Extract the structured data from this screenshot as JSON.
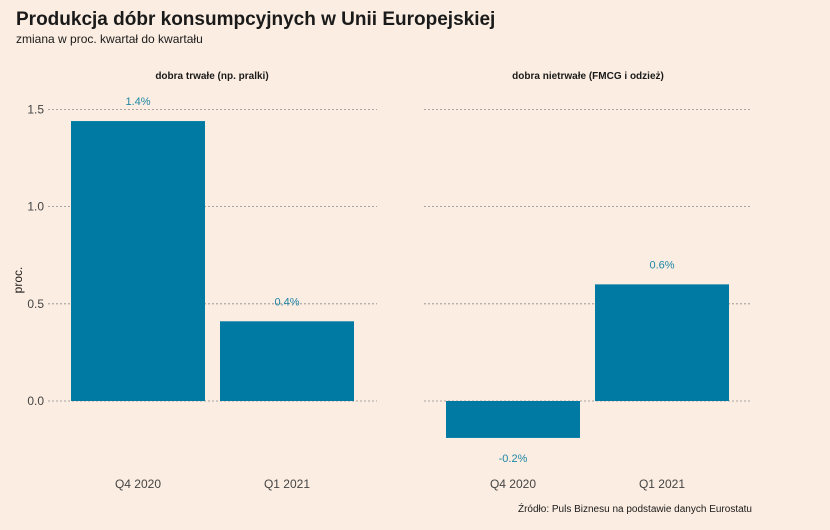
{
  "title": "Produkcja dóbr konsumpcyjnych w Unii Europejskiej",
  "subtitle": "zmiana w proc. kwartał do kwartału",
  "caption": "Źródło: Puls Biznesu na podstawie danych Eurostatu",
  "colors": {
    "background": "#fbede1",
    "bar": "#007aa3",
    "label": "#1f86a6"
  },
  "chart_data": {
    "type": "bar",
    "ylabel": "proc.",
    "xlabel": "",
    "ylim": [
      -0.32,
      1.6
    ],
    "yticks": [
      0.0,
      0.5,
      1.0,
      1.5
    ],
    "ytick_labels": [
      "0.0",
      "0.5",
      "1.0",
      "1.5"
    ],
    "grid": true,
    "categories": [
      "Q4 2020",
      "Q1 2021"
    ],
    "panels": [
      {
        "title": "dobra trwałe (np. pralki)",
        "values": [
          1.44,
          0.41
        ],
        "labels": [
          "1.4%",
          "0.4%"
        ]
      },
      {
        "title": "dobra nietrwałe (FMCG i odzież)",
        "values": [
          -0.19,
          0.6
        ],
        "labels": [
          "-0.2%",
          "0.6%"
        ]
      }
    ]
  }
}
